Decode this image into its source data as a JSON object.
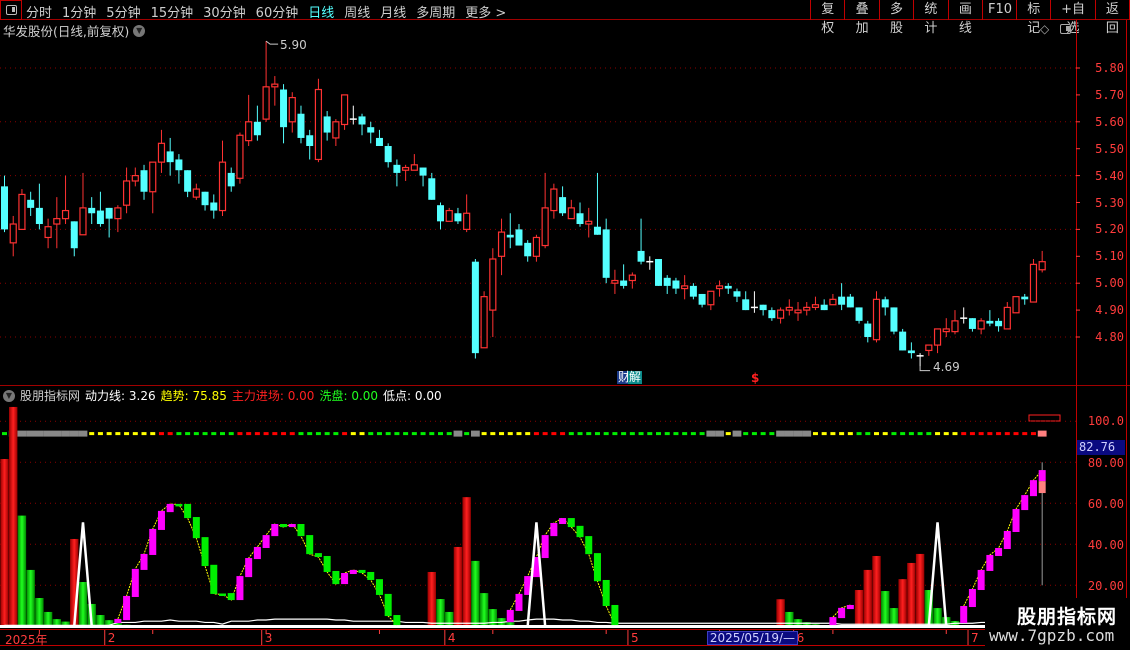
{
  "toolbar": {
    "periods": [
      "分时",
      "1分钟",
      "5分钟",
      "15分钟",
      "30分钟",
      "60分钟",
      "日线",
      "周线",
      "月线",
      "多周期",
      "更多 >"
    ],
    "selected_period": "日线",
    "buttons": [
      "复权",
      "叠加",
      "多股",
      "统计",
      "画线",
      "F10",
      "标记",
      "+自选",
      "返回"
    ]
  },
  "main": {
    "title": "华发股份(日线,前复权)",
    "high_label": "5.90",
    "low_label": "4.69",
    "marker_cai": "财",
    "marker_jie": "解",
    "marker_s": "$",
    "icons": [
      "dropdown-circle-icon",
      "diamond-icon",
      "panel-toggle-icon"
    ]
  },
  "indicator": {
    "name": "股朋指标网",
    "fields": [
      {
        "label": "动力线:",
        "value": "3.26",
        "color": "#ffffff"
      },
      {
        "label": "趋势:",
        "value": "75.85",
        "color": "#ffff00"
      },
      {
        "label": "主力进场:",
        "value": "0.00",
        "color": "#ff2020"
      },
      {
        "label": "洗盘:",
        "value": "0.00",
        "color": "#20ff20"
      },
      {
        "label": "低点:",
        "value": "0.00",
        "color": "#ffffff"
      }
    ],
    "axis_labels": [
      "100.0",
      "80.00",
      "60.00",
      "40.00",
      "20.00"
    ],
    "current_value": "82.76"
  },
  "date_axis": {
    "labels": [
      {
        "text": "2025年",
        "index": 0
      },
      {
        "text": "2",
        "index": 12
      },
      {
        "text": "3",
        "index": 30
      },
      {
        "text": "4",
        "index": 51
      },
      {
        "text": "5",
        "index": 72
      },
      {
        "text": "6",
        "index": 91
      },
      {
        "text": "7",
        "index": 111
      }
    ],
    "cursor_date": "2025/05/19/—",
    "cursor_index": 81
  },
  "watermark": {
    "line1": "股朋指标网",
    "line2": "www.7gpzb.com"
  },
  "colors": {
    "up": "#ff3232",
    "down": "#54ffff",
    "flat": "#ffffff",
    "axis": "#ff3c3c",
    "grid": "#8a0000",
    "trend_up": "#ff00ff",
    "trend_down": "#00ee00",
    "trend_line": "#ffff00",
    "main_force": "#ff0000",
    "wash": "#00dd00",
    "low_point": "#ffffff",
    "power_line": "#ffffff"
  },
  "chart_data": [
    {
      "type": "candlestick",
      "title": "华发股份(日线,前复权)",
      "price_ticks": [
        5.8,
        5.7,
        5.6,
        5.5,
        5.4,
        5.3,
        5.2,
        5.1,
        5.0,
        4.9,
        4.8
      ],
      "grid_prices": [
        5.8,
        5.6,
        5.4,
        5.2,
        5.0,
        4.8
      ],
      "ylim": [
        4.65,
        5.95
      ],
      "high": {
        "index": 30,
        "value": 5.9
      },
      "low": {
        "index": 105,
        "value": 4.69
      },
      "ohlc": [
        [
          5.36,
          5.4,
          5.19,
          5.2
        ],
        [
          5.15,
          5.25,
          5.1,
          5.22
        ],
        [
          5.2,
          5.35,
          5.2,
          5.33
        ],
        [
          5.31,
          5.34,
          5.25,
          5.28
        ],
        [
          5.28,
          5.37,
          5.2,
          5.22
        ],
        [
          5.17,
          5.24,
          5.13,
          5.21
        ],
        [
          5.22,
          5.32,
          5.13,
          5.24
        ],
        [
          5.24,
          5.4,
          5.22,
          5.27
        ],
        [
          5.23,
          5.23,
          5.1,
          5.13
        ],
        [
          5.18,
          5.41,
          5.18,
          5.28
        ],
        [
          5.28,
          5.32,
          5.22,
          5.26
        ],
        [
          5.27,
          5.34,
          5.21,
          5.22
        ],
        [
          5.28,
          5.28,
          5.17,
          5.24
        ],
        [
          5.24,
          5.29,
          5.19,
          5.28
        ],
        [
          5.29,
          5.43,
          5.26,
          5.38
        ],
        [
          5.38,
          5.43,
          5.36,
          5.4
        ],
        [
          5.42,
          5.44,
          5.31,
          5.34
        ],
        [
          5.34,
          5.45,
          5.26,
          5.45
        ],
        [
          5.45,
          5.57,
          5.41,
          5.52
        ],
        [
          5.49,
          5.54,
          5.4,
          5.45
        ],
        [
          5.46,
          5.48,
          5.37,
          5.42
        ],
        [
          5.42,
          5.42,
          5.32,
          5.34
        ],
        [
          5.32,
          5.37,
          5.31,
          5.35
        ],
        [
          5.34,
          5.34,
          5.27,
          5.29
        ],
        [
          5.3,
          5.33,
          5.24,
          5.27
        ],
        [
          5.27,
          5.53,
          5.25,
          5.45
        ],
        [
          5.41,
          5.43,
          5.34,
          5.36
        ],
        [
          5.39,
          5.56,
          5.37,
          5.55
        ],
        [
          5.53,
          5.7,
          5.51,
          5.6
        ],
        [
          5.6,
          5.66,
          5.53,
          5.55
        ],
        [
          5.61,
          5.9,
          5.6,
          5.73
        ],
        [
          5.73,
          5.77,
          5.66,
          5.74
        ],
        [
          5.72,
          5.74,
          5.52,
          5.58
        ],
        [
          5.6,
          5.71,
          5.56,
          5.69
        ],
        [
          5.63,
          5.66,
          5.52,
          5.54
        ],
        [
          5.55,
          5.57,
          5.46,
          5.51
        ],
        [
          5.46,
          5.76,
          5.45,
          5.72
        ],
        [
          5.62,
          5.64,
          5.53,
          5.56
        ],
        [
          5.54,
          5.61,
          5.51,
          5.6
        ],
        [
          5.59,
          5.7,
          5.57,
          5.7
        ],
        [
          5.61,
          5.66,
          5.59,
          5.61
        ],
        [
          5.62,
          5.63,
          5.55,
          5.59
        ],
        [
          5.58,
          5.6,
          5.52,
          5.56
        ],
        [
          5.54,
          5.57,
          5.51,
          5.51
        ],
        [
          5.51,
          5.52,
          5.43,
          5.45
        ],
        [
          5.44,
          5.46,
          5.36,
          5.41
        ],
        [
          5.42,
          5.44,
          5.38,
          5.43
        ],
        [
          5.42,
          5.48,
          5.42,
          5.44
        ],
        [
          5.43,
          5.43,
          5.36,
          5.4
        ],
        [
          5.39,
          5.41,
          5.31,
          5.31
        ],
        [
          5.29,
          5.3,
          5.2,
          5.23
        ],
        [
          5.23,
          5.28,
          5.23,
          5.27
        ],
        [
          5.26,
          5.28,
          5.22,
          5.23
        ],
        [
          5.2,
          5.33,
          5.19,
          5.26
        ],
        [
          5.08,
          5.09,
          4.72,
          4.74
        ],
        [
          4.76,
          4.97,
          4.76,
          4.95
        ],
        [
          4.9,
          5.13,
          4.8,
          5.09
        ],
        [
          5.1,
          5.24,
          5.03,
          5.19
        ],
        [
          5.18,
          5.26,
          5.13,
          5.17
        ],
        [
          5.2,
          5.22,
          5.14,
          5.14
        ],
        [
          5.15,
          5.16,
          5.08,
          5.1
        ],
        [
          5.1,
          5.18,
          5.08,
          5.17
        ],
        [
          5.14,
          5.41,
          5.13,
          5.28
        ],
        [
          5.27,
          5.37,
          5.24,
          5.35
        ],
        [
          5.32,
          5.36,
          5.25,
          5.26
        ],
        [
          5.24,
          5.31,
          5.24,
          5.28
        ],
        [
          5.26,
          5.3,
          5.21,
          5.22
        ],
        [
          5.22,
          5.28,
          5.17,
          5.23
        ],
        [
          5.21,
          5.41,
          5.18,
          5.18
        ],
        [
          5.2,
          5.24,
          5.0,
          5.02
        ],
        [
          5.0,
          5.05,
          4.96,
          5.01
        ],
        [
          5.01,
          5.07,
          4.98,
          4.99
        ],
        [
          5.01,
          5.04,
          4.98,
          5.03
        ],
        [
          5.12,
          5.24,
          5.07,
          5.08
        ],
        [
          5.08,
          5.1,
          5.05,
          5.08
        ],
        [
          5.09,
          5.09,
          4.99,
          4.99
        ],
        [
          5.02,
          5.03,
          4.96,
          4.99
        ],
        [
          5.01,
          5.02,
          4.96,
          4.98
        ],
        [
          4.98,
          5.03,
          4.94,
          4.99
        ],
        [
          4.99,
          5.0,
          4.94,
          4.95
        ],
        [
          4.96,
          4.96,
          4.91,
          4.92
        ],
        [
          4.92,
          4.97,
          4.9,
          4.97
        ],
        [
          4.98,
          5.01,
          4.95,
          4.99
        ],
        [
          4.99,
          5.0,
          4.96,
          4.98
        ],
        [
          4.97,
          4.98,
          4.93,
          4.95
        ],
        [
          4.94,
          4.97,
          4.9,
          4.9
        ],
        [
          4.91,
          4.97,
          4.89,
          4.91
        ],
        [
          4.92,
          4.92,
          4.88,
          4.9
        ],
        [
          4.9,
          4.91,
          4.86,
          4.87
        ],
        [
          4.87,
          4.91,
          4.85,
          4.9
        ],
        [
          4.9,
          4.94,
          4.88,
          4.91
        ],
        [
          4.89,
          4.93,
          4.86,
          4.9
        ],
        [
          4.9,
          4.93,
          4.88,
          4.91
        ],
        [
          4.91,
          4.95,
          4.9,
          4.92
        ],
        [
          4.92,
          4.94,
          4.9,
          4.9
        ],
        [
          4.92,
          4.96,
          4.92,
          4.94
        ],
        [
          4.95,
          5.0,
          4.9,
          4.92
        ],
        [
          4.95,
          4.96,
          4.91,
          4.91
        ],
        [
          4.91,
          4.91,
          4.85,
          4.86
        ],
        [
          4.85,
          4.86,
          4.78,
          4.8
        ],
        [
          4.79,
          4.97,
          4.78,
          4.94
        ],
        [
          4.94,
          4.95,
          4.88,
          4.91
        ],
        [
          4.91,
          4.91,
          4.81,
          4.82
        ],
        [
          4.82,
          4.83,
          4.75,
          4.75
        ],
        [
          4.75,
          4.78,
          4.72,
          4.74
        ],
        [
          4.73,
          4.74,
          4.69,
          4.73
        ],
        [
          4.75,
          4.77,
          4.73,
          4.77
        ],
        [
          4.77,
          4.83,
          4.74,
          4.83
        ],
        [
          4.82,
          4.87,
          4.8,
          4.83
        ],
        [
          4.82,
          4.9,
          4.81,
          4.86
        ],
        [
          4.87,
          4.91,
          4.85,
          4.87
        ],
        [
          4.87,
          4.87,
          4.82,
          4.83
        ],
        [
          4.83,
          4.87,
          4.81,
          4.86
        ],
        [
          4.86,
          4.9,
          4.84,
          4.85
        ],
        [
          4.86,
          4.87,
          4.82,
          4.84
        ],
        [
          4.83,
          4.93,
          4.83,
          4.91
        ],
        [
          4.89,
          4.95,
          4.89,
          4.95
        ],
        [
          4.95,
          4.96,
          4.92,
          4.94
        ],
        [
          4.93,
          5.09,
          4.93,
          5.07
        ],
        [
          5.05,
          5.12,
          5.04,
          5.08
        ]
      ]
    },
    {
      "type": "indicator",
      "title": "股朋指标网",
      "ylim": [
        0,
        100
      ],
      "axis_ticks": [
        100,
        80,
        60,
        40,
        20
      ],
      "status_line_value": 94,
      "status_codes": "gxxxxxxxxxyyyyyyyyrrgggggggrrrrrrrgggggryyggggggggggxgxyyyyyyrrrrggggggggggggggggxxyxggggxxxxyyyyyggyygggggyyyrrrrrrrrrp",
      "status_colors": {
        "g": "#00ee00",
        "x": "#888888",
        "y": "#ffff00",
        "r": "#ff0000",
        "p": "#ff8080"
      },
      "main_force": {
        "0": 81.6,
        "1": 108,
        "8": 42.6,
        "49": 26.5,
        "52": 38.7,
        "53": 63,
        "89": 13.2,
        "98": 17.7,
        "99": 27.5,
        "100": 34.3,
        "103": 23,
        "104": 30.9,
        "105": 35.3
      },
      "wash": {
        "2": 54,
        "3": 27.5,
        "4": 13.8,
        "5": 7,
        "6": 3.5,
        "7": 2.3,
        "9": 21.6,
        "10": 10.9,
        "11": 5.5,
        "12": 3,
        "13": 1.5,
        "14": 0.8,
        "50": 13.3,
        "51": 7,
        "54": 31.9,
        "55": 16.2,
        "56": 8.4,
        "57": 4,
        "58": 2,
        "90": 7,
        "91": 3.5,
        "92": 2,
        "93": 1,
        "101": 17.2,
        "102": 8.9,
        "106": 17.7,
        "107": 8.9,
        "108": 4.5,
        "109": 2.6
      },
      "trend": [
        [
          13,
          1.6,
          3.6
        ],
        [
          14,
          3,
          14.8
        ],
        [
          15,
          14.3,
          28
        ],
        [
          16,
          27.5,
          35.3
        ],
        [
          17,
          34.8,
          47.5
        ],
        [
          18,
          47,
          56.3
        ],
        [
          19,
          55.7,
          59.7
        ],
        [
          20,
          59.7,
          59.3
        ],
        [
          21,
          59.7,
          52.8
        ],
        [
          22,
          53.3,
          43
        ],
        [
          23,
          43.5,
          29.4
        ],
        [
          24,
          30,
          15.8
        ],
        [
          25,
          16,
          15.6
        ],
        [
          26,
          16.2,
          12.8
        ],
        [
          27,
          12.8,
          24.5
        ],
        [
          28,
          24,
          33.3
        ],
        [
          29,
          32.8,
          38.7
        ],
        [
          30,
          38.2,
          44.5
        ],
        [
          31,
          44,
          49.9
        ],
        [
          32,
          49.9,
          48.4
        ],
        [
          33,
          48.4,
          49.9
        ],
        [
          34,
          49.9,
          44
        ],
        [
          35,
          44.5,
          35.2
        ],
        [
          36,
          35.7,
          33.8
        ],
        [
          37,
          34.3,
          26.5
        ],
        [
          38,
          27,
          20.6
        ],
        [
          39,
          20.6,
          26
        ],
        [
          40,
          25.5,
          27.5
        ],
        [
          41,
          27.5,
          26
        ],
        [
          42,
          26.5,
          22.6
        ],
        [
          43,
          23,
          15.3
        ],
        [
          44,
          15.8,
          5
        ],
        [
          45,
          5.5,
          0.6
        ],
        [
          58,
          2,
          8
        ],
        [
          59,
          7.5,
          15.8
        ],
        [
          60,
          15.3,
          24.5
        ],
        [
          61,
          24,
          33.8
        ],
        [
          62,
          33.3,
          44.5
        ],
        [
          63,
          44,
          50.4
        ],
        [
          64,
          49.9,
          52.8
        ],
        [
          65,
          52.8,
          48.4
        ],
        [
          66,
          49,
          43.5
        ],
        [
          67,
          44,
          35.2
        ],
        [
          68,
          35.7,
          22
        ],
        [
          69,
          22.6,
          9.9
        ],
        [
          70,
          10.4,
          0.6
        ],
        [
          95,
          0.6,
          4.5
        ],
        [
          96,
          4,
          9
        ],
        [
          97,
          8.4,
          10.4
        ],
        [
          110,
          1.6,
          9.9
        ],
        [
          111,
          9.4,
          18.2
        ],
        [
          112,
          17.7,
          27.5
        ],
        [
          113,
          27,
          34.8
        ],
        [
          114,
          34.3,
          38.2
        ],
        [
          115,
          37.7,
          46.5
        ],
        [
          116,
          46,
          57.2
        ],
        [
          117,
          56.7,
          64
        ],
        [
          118,
          63.5,
          71.3
        ],
        [
          119,
          70.8,
          76.2
        ]
      ],
      "last_bar": {
        "index": 119,
        "wick": [
          20,
          80
        ],
        "pink": [
          65,
          70.8
        ]
      },
      "low_points": [
        [
          9,
          50.7
        ],
        [
          61,
          50.7
        ],
        [
          107,
          50.7
        ]
      ],
      "power_line": [
        0,
        0,
        0,
        0,
        0,
        0,
        0,
        0,
        0,
        0,
        0,
        0,
        0,
        1.4,
        1.4,
        1.4,
        2,
        2,
        2,
        2.6,
        2,
        2,
        2,
        1.4,
        1.4,
        0.6,
        2,
        2,
        2,
        2.6,
        2.6,
        3,
        3,
        3,
        3,
        3,
        3,
        3,
        2.6,
        2.6,
        2,
        2,
        2,
        2,
        2,
        2,
        1.4,
        1.4,
        1.4,
        1,
        1,
        1,
        1,
        1,
        1,
        1,
        1.4,
        1.4,
        2,
        2,
        2.6,
        3,
        3,
        3,
        2.6,
        2.6,
        2,
        2,
        1.4,
        1.4,
        1,
        1,
        1,
        1,
        1,
        1,
        1,
        1,
        1,
        1,
        1,
        1,
        1,
        1,
        1,
        1,
        1,
        1,
        1,
        1,
        1,
        1,
        1,
        1,
        1,
        1,
        0.5,
        0.5,
        0.5,
        0.5,
        0.5,
        0.5,
        0.5,
        0.5,
        0.5,
        0.5,
        0.5,
        0.5,
        0.5,
        1,
        1,
        1,
        1.4,
        1.4,
        2,
        2,
        2.6,
        2.6,
        3,
        3.26
      ]
    }
  ]
}
